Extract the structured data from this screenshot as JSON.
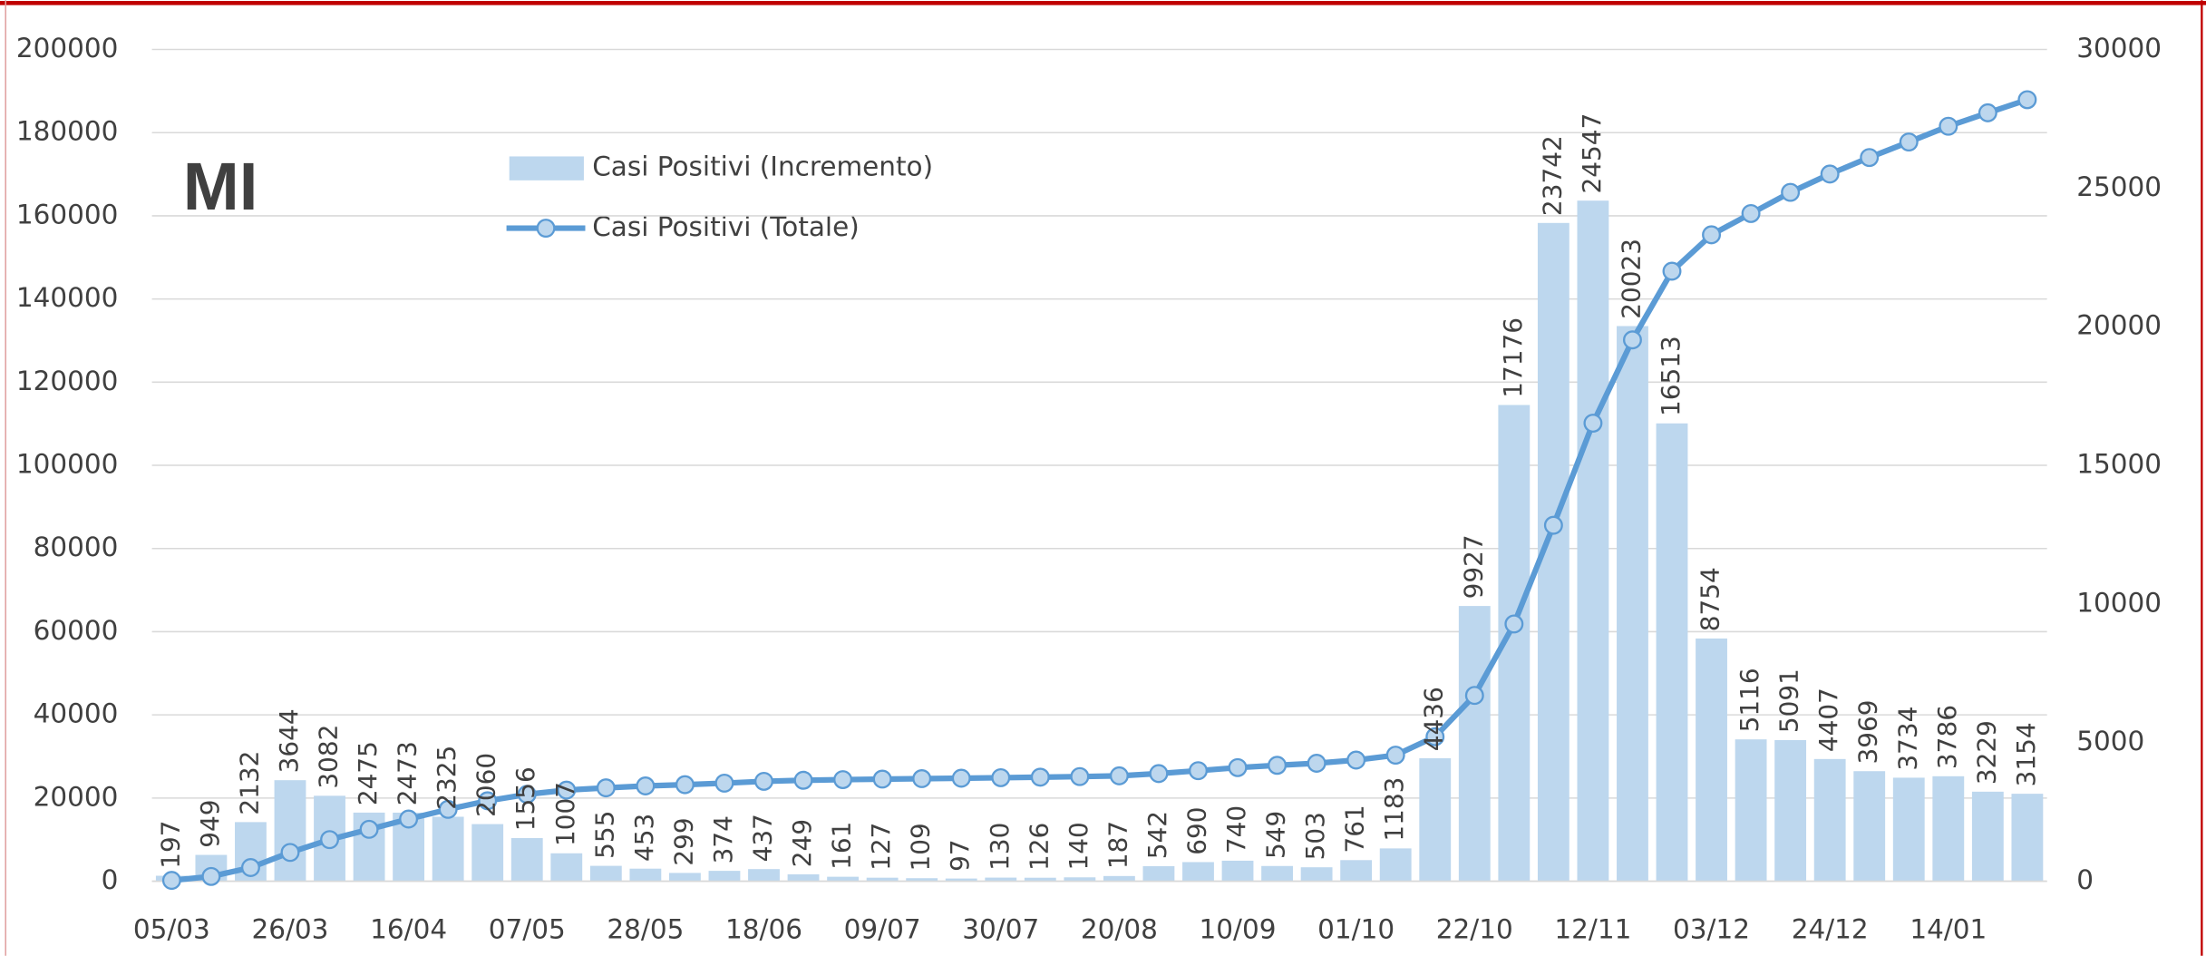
{
  "chart_data": {
    "type": "bar_line",
    "title": "MI",
    "categories": [
      "05/03",
      null,
      null,
      "26/03",
      null,
      null,
      "16/04",
      null,
      null,
      "07/05",
      null,
      null,
      "28/05",
      null,
      null,
      "18/06",
      null,
      null,
      "09/07",
      null,
      null,
      "30/07",
      null,
      null,
      "20/08",
      null,
      null,
      "10/09",
      null,
      null,
      "01/10",
      null,
      null,
      "22/10",
      null,
      null,
      "12/11",
      null,
      null,
      "03/12",
      null,
      null,
      "24/12",
      null,
      null,
      "14/01",
      null,
      null
    ],
    "series": [
      {
        "name": "Casi Positivi (Incremento)",
        "color": "#bdd7ee",
        "axis": "y2",
        "values": [
          197,
          949,
          2132,
          3644,
          3082,
          2475,
          2473,
          2325,
          2060,
          1556,
          1007,
          555,
          453,
          299,
          374,
          437,
          249,
          161,
          127,
          109,
          97,
          130,
          126,
          140,
          187,
          542,
          690,
          740,
          549,
          503,
          761,
          1183,
          4436,
          9927,
          17176,
          23742,
          24547,
          20023,
          16513,
          8754,
          5116,
          5091,
          4407,
          3969,
          3734,
          3786,
          3229,
          3154
        ]
      },
      {
        "name": "Casi Positivi (Totale)",
        "color": "#5b9bd5",
        "marker_fill": "#bdd7ee",
        "axis": "y",
        "values": [
          197,
          1146,
          3278,
          6922,
          10004,
          12479,
          14952,
          17277,
          19337,
          20893,
          21900,
          22455,
          22908,
          23207,
          23581,
          24018,
          24267,
          24428,
          24555,
          24664,
          24761,
          24891,
          25017,
          25157,
          25344,
          25886,
          26576,
          27316,
          27865,
          28368,
          29129,
          30312,
          34748,
          44675,
          61851,
          85593,
          110140,
          130163,
          146676,
          155430,
          160546,
          165637,
          170044,
          174013,
          177747,
          181533,
          184762,
          187916
        ]
      }
    ],
    "ylim": [
      0,
      200000
    ],
    "yticks": [
      0,
      20000,
      40000,
      60000,
      80000,
      100000,
      120000,
      140000,
      160000,
      180000,
      200000
    ],
    "y2lim": [
      0,
      30000
    ],
    "y2ticks": [
      0,
      5000,
      10000,
      15000,
      20000,
      25000,
      30000
    ],
    "grid": true
  }
}
